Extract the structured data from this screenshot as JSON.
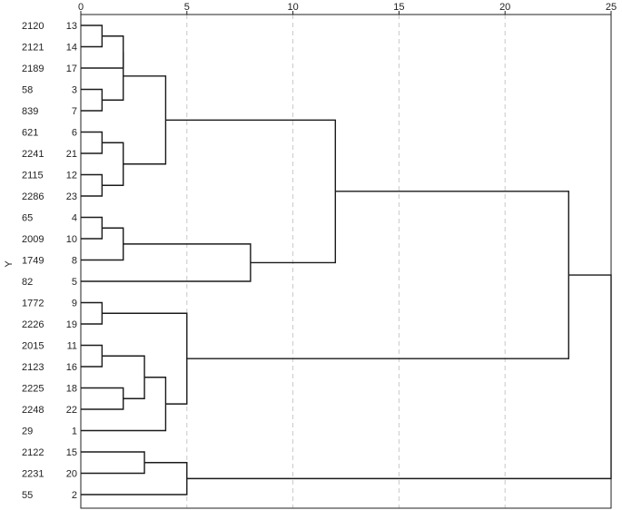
{
  "chart_data": {
    "type": "dendrogram",
    "title": "",
    "xlabel": "",
    "ylabel": "Y",
    "xlim": [
      0,
      25
    ],
    "x_ticks": [
      0,
      5,
      10,
      15,
      20,
      25
    ],
    "grid": true,
    "leaves": [
      {
        "case": "13",
        "label": "2120"
      },
      {
        "case": "14",
        "label": "2121"
      },
      {
        "case": "17",
        "label": "2189"
      },
      {
        "case": "3",
        "label": "58"
      },
      {
        "case": "7",
        "label": "839"
      },
      {
        "case": "6",
        "label": "621"
      },
      {
        "case": "21",
        "label": "2241"
      },
      {
        "case": "12",
        "label": "2115"
      },
      {
        "case": "23",
        "label": "2286"
      },
      {
        "case": "4",
        "label": "65"
      },
      {
        "case": "10",
        "label": "2009"
      },
      {
        "case": "8",
        "label": "1749"
      },
      {
        "case": "5",
        "label": "82"
      },
      {
        "case": "9",
        "label": "1772"
      },
      {
        "case": "19",
        "label": "2226"
      },
      {
        "case": "11",
        "label": "2015"
      },
      {
        "case": "16",
        "label": "2123"
      },
      {
        "case": "18",
        "label": "2225"
      },
      {
        "case": "22",
        "label": "2248"
      },
      {
        "case": "1",
        "label": "29"
      },
      {
        "case": "15",
        "label": "2122"
      },
      {
        "case": "20",
        "label": "2231"
      },
      {
        "case": "2",
        "label": "55"
      }
    ],
    "merges": [
      {
        "id": "m1",
        "a": "13",
        "b": "14",
        "height": 1
      },
      {
        "id": "m2",
        "a": "m1",
        "b": "17",
        "height": 2
      },
      {
        "id": "m3",
        "a": "3",
        "b": "7",
        "height": 1
      },
      {
        "id": "m4",
        "a": "m2",
        "b": "m3",
        "height": 2
      },
      {
        "id": "m5",
        "a": "6",
        "b": "21",
        "height": 1
      },
      {
        "id": "m6",
        "a": "12",
        "b": "23",
        "height": 1
      },
      {
        "id": "m7",
        "a": "m5",
        "b": "m6",
        "height": 2
      },
      {
        "id": "m8",
        "a": "m4",
        "b": "m7",
        "height": 4
      },
      {
        "id": "m9",
        "a": "4",
        "b": "10",
        "height": 1
      },
      {
        "id": "m10",
        "a": "m9",
        "b": "8",
        "height": 2
      },
      {
        "id": "m11",
        "a": "m10",
        "b": "5",
        "height": 8
      },
      {
        "id": "m12",
        "a": "m8",
        "b": "m11",
        "height": 12
      },
      {
        "id": "m13",
        "a": "9",
        "b": "19",
        "height": 1
      },
      {
        "id": "m14",
        "a": "11",
        "b": "16",
        "height": 1
      },
      {
        "id": "m15",
        "a": "18",
        "b": "22",
        "height": 2
      },
      {
        "id": "m16",
        "a": "m14",
        "b": "m15",
        "height": 3
      },
      {
        "id": "m17",
        "a": "m16",
        "b": "1",
        "height": 4
      },
      {
        "id": "m18",
        "a": "m13",
        "b": "m17",
        "height": 5
      },
      {
        "id": "m19",
        "a": "m12",
        "b": "m18",
        "height": 23
      },
      {
        "id": "m20",
        "a": "15",
        "b": "20",
        "height": 3
      },
      {
        "id": "m21",
        "a": "m20",
        "b": "2",
        "height": 5
      },
      {
        "id": "m22",
        "a": "m19",
        "b": "m21",
        "height": 25
      }
    ]
  }
}
